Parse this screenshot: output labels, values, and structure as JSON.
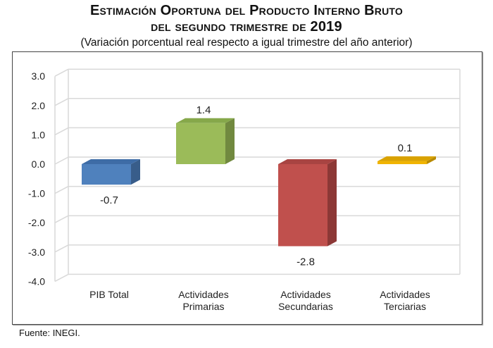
{
  "title_line1": "Estimación Oportuna del Producto Interno Bruto",
  "title_line2": "del segundo trimestre de 2019",
  "subtitle": "(Variación porcentual real respecto a igual trimestre del año anterior)",
  "source": "Fuente: INEGI.",
  "chart_data": {
    "type": "bar",
    "style": "3d-column",
    "title": "Estimación Oportuna del Producto Interno Bruto del segundo trimestre de 2019",
    "categories": [
      [
        "PIB Total"
      ],
      [
        "Actividades",
        "Primarias"
      ],
      [
        "Actividades",
        "Secundarias"
      ],
      [
        "Actividades",
        "Terciarias"
      ]
    ],
    "values": [
      -0.7,
      1.4,
      -2.8,
      0.1
    ],
    "value_labels": [
      "-0.7",
      "1.4",
      "-2.8",
      "0.1"
    ],
    "colors": [
      "#4F81BD",
      "#9BBB59",
      "#C0504D",
      "#F0B400"
    ],
    "side_colors": [
      "#385D8A",
      "#71893F",
      "#8C3836",
      "#B88A00"
    ],
    "top_colors": [
      "#3E6CA6",
      "#86A84A",
      "#A84442",
      "#D9A200"
    ],
    "ylim": [
      -4.0,
      3.0
    ],
    "yticks": [
      "3.0",
      "2.0",
      "1.0",
      "0.0",
      "-1.0",
      "-2.0",
      "-3.0",
      "-4.0"
    ],
    "ytick_values": [
      3,
      2,
      1,
      0,
      -1,
      -2,
      -3,
      -4
    ],
    "grid": true,
    "xlabel": "",
    "ylabel": ""
  }
}
